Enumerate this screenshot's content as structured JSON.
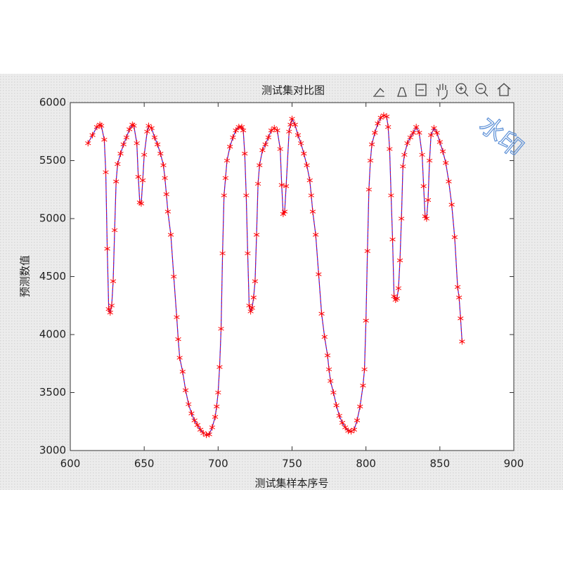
{
  "chart_data": {
    "type": "line",
    "title": "测试集对比图",
    "x_label": "测试集样本序号",
    "y_label": "预测数值",
    "watermark": "水印",
    "x": [
      612,
      615,
      618,
      620,
      621,
      623,
      624,
      625,
      626,
      627,
      628,
      629,
      630,
      631,
      632,
      634,
      636,
      638,
      640,
      642,
      643,
      645,
      646,
      647,
      648,
      649,
      650,
      652,
      653,
      655,
      657,
      659,
      661,
      663,
      664,
      665,
      666,
      668,
      670,
      672,
      673,
      674,
      676,
      678,
      680,
      682,
      684,
      686,
      688,
      690,
      692,
      694,
      696,
      698,
      699,
      700,
      701,
      702,
      703,
      704,
      705,
      706,
      708,
      710,
      712,
      714,
      716,
      717,
      718,
      719,
      720,
      721,
      722,
      723,
      724,
      725,
      726,
      727,
      728,
      730,
      732,
      734,
      736,
      738,
      740,
      742,
      743,
      744,
      745,
      746,
      748,
      749,
      750,
      752,
      754,
      756,
      758,
      760,
      762,
      763,
      764,
      766,
      768,
      770,
      772,
      774,
      775,
      776,
      778,
      780,
      782,
      784,
      786,
      788,
      790,
      792,
      794,
      796,
      798,
      799,
      800,
      801,
      802,
      803,
      804,
      806,
      808,
      810,
      812,
      814,
      815,
      816,
      817,
      818,
      819,
      820,
      821,
      822,
      823,
      824,
      825,
      826,
      828,
      830,
      832,
      834,
      836,
      838,
      839,
      840,
      841,
      842,
      843,
      844,
      846,
      848,
      850,
      852,
      854,
      856,
      858,
      860,
      862,
      863,
      864,
      865
    ],
    "values": [
      5650,
      5720,
      5790,
      5810,
      5800,
      5680,
      5400,
      4740,
      4220,
      4190,
      4250,
      4460,
      4900,
      5320,
      5470,
      5560,
      5640,
      5700,
      5770,
      5810,
      5800,
      5650,
      5360,
      5140,
      5130,
      5330,
      5550,
      5750,
      5800,
      5780,
      5700,
      5640,
      5560,
      5460,
      5350,
      5210,
      5060,
      4860,
      4500,
      4150,
      3960,
      3800,
      3680,
      3520,
      3400,
      3320,
      3260,
      3220,
      3180,
      3150,
      3135,
      3140,
      3200,
      3290,
      3380,
      3500,
      3720,
      4050,
      4700,
      5200,
      5350,
      5500,
      5620,
      5700,
      5760,
      5790,
      5790,
      5760,
      5560,
      5200,
      4700,
      4250,
      4200,
      4230,
      4320,
      4460,
      4860,
      5300,
      5460,
      5590,
      5640,
      5700,
      5760,
      5780,
      5760,
      5600,
      5290,
      5040,
      5060,
      5280,
      5750,
      5810,
      5860,
      5810,
      5720,
      5650,
      5560,
      5460,
      5330,
      5200,
      5060,
      4860,
      4520,
      4180,
      3980,
      3820,
      3700,
      3600,
      3500,
      3390,
      3300,
      3240,
      3200,
      3170,
      3165,
      3180,
      3260,
      3380,
      3560,
      3700,
      4120,
      4720,
      5250,
      5500,
      5640,
      5740,
      5820,
      5870,
      5890,
      5880,
      5790,
      5600,
      5200,
      4820,
      4330,
      4300,
      4310,
      4400,
      4640,
      5000,
      5450,
      5550,
      5650,
      5700,
      5740,
      5790,
      5740,
      5550,
      5280,
      5020,
      5000,
      5160,
      5500,
      5720,
      5780,
      5740,
      5660,
      5580,
      5480,
      5320,
      5120,
      4840,
      4410,
      4320,
      4140,
      3940
    ],
    "line_color": "#1f1fff",
    "marker_color": "#ff0000",
    "marker": "star",
    "xlim": [
      600,
      900
    ],
    "xticks": [
      600,
      650,
      700,
      750,
      800,
      850,
      900
    ],
    "ylim": [
      3000,
      6000
    ],
    "yticks": [
      3000,
      3500,
      4000,
      4500,
      5000,
      5500,
      6000
    ]
  }
}
